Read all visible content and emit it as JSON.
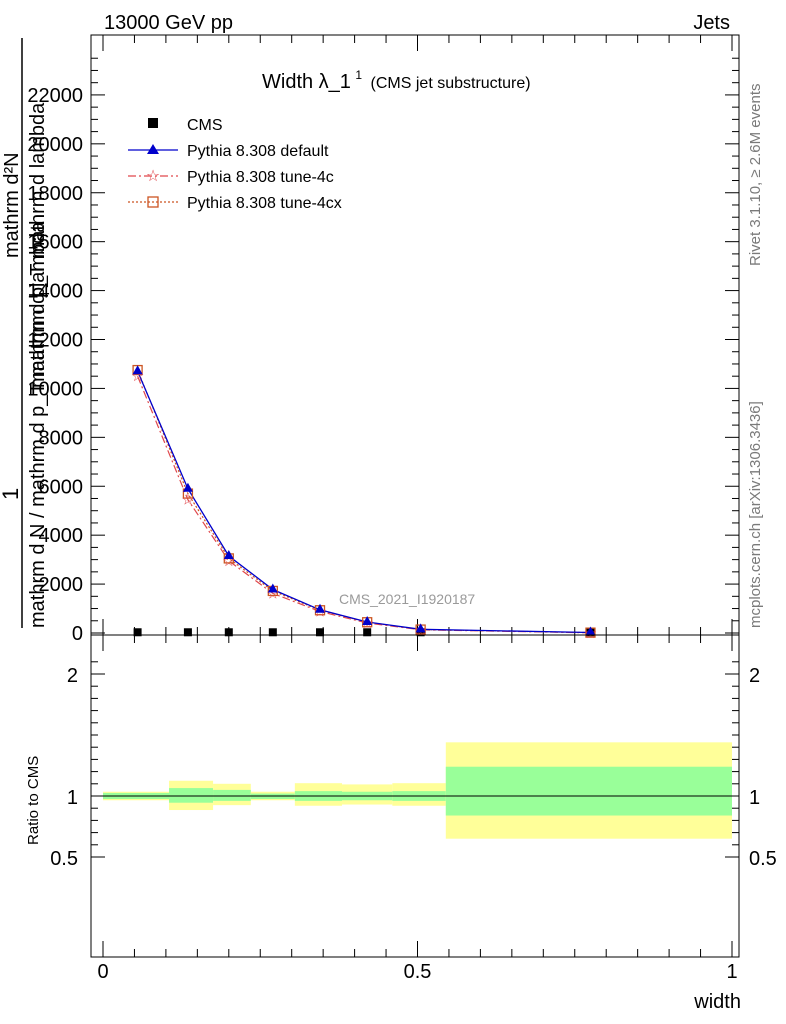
{
  "header": {
    "left": "13000 GeV pp",
    "right": "Jets"
  },
  "side_texts": {
    "rivet": "Rivet 3.1.10, ≥ 2.6M events",
    "mcplots": "mcplots.cern.ch [arXiv:1306.3436]"
  },
  "watermark": "CMS_2021_I1920187",
  "colors": {
    "data": "#000000",
    "default": "#0000cc",
    "tune4c": "#e0474c",
    "tune4cx": "#cc5522",
    "band_inner": "#99ff99",
    "band_outer": "#ffff99"
  },
  "chart_data": [
    {
      "type": "line",
      "title_main": "Width λ_1",
      "title_sup": "1",
      "title_note": "(CMS jet substructure)",
      "ylabel_numerator": "1",
      "ylabel_denominator": "mathrm d N / mathrm d p_T mathrm d lambda",
      "ylabel_top": "mathrm d²N",
      "ylabel_top2": "mathrm d p_T mathrm d lambda",
      "xlim": [
        0,
        1
      ],
      "ylim": [
        0,
        24000
      ],
      "yticks": [
        0,
        2000,
        4000,
        6000,
        8000,
        10000,
        12000,
        14000,
        16000,
        18000,
        20000,
        22000
      ],
      "ytick_labels": [
        "0",
        "2000",
        "4000",
        "6000",
        "8000",
        "10000",
        "12000",
        "14000",
        "16000",
        "18000",
        "20000",
        "22000"
      ],
      "bin_edges": [
        0,
        0.105,
        0.175,
        0.235,
        0.305,
        0.38,
        0.46,
        0.545,
        1.0
      ],
      "series": [
        {
          "name": "CMS",
          "marker": "square",
          "x": [
            0.055,
            0.135,
            0.2,
            0.27,
            0.345,
            0.42,
            0.505,
            0.775
          ],
          "y": [
            30,
            30,
            30,
            30,
            30,
            30,
            30,
            30
          ]
        },
        {
          "name": "Pythia 8.308 default",
          "marker": "triangle",
          "x": [
            0.055,
            0.135,
            0.2,
            0.27,
            0.345,
            0.42,
            0.505,
            0.775
          ],
          "y": [
            10700,
            5900,
            3150,
            1780,
            950,
            450,
            150,
            20
          ]
        },
        {
          "name": "Pythia 8.308 tune-4c",
          "marker": "star",
          "x": [
            0.055,
            0.135,
            0.2,
            0.27,
            0.345,
            0.42,
            0.505,
            0.775
          ],
          "y": [
            10500,
            5450,
            2950,
            1620,
            880,
            410,
            130,
            10
          ]
        },
        {
          "name": "Pythia 8.308 tune-4cx",
          "marker": "open-square",
          "x": [
            0.055,
            0.135,
            0.2,
            0.27,
            0.345,
            0.42,
            0.505,
            0.775
          ],
          "y": [
            10750,
            5700,
            3050,
            1720,
            930,
            440,
            140,
            15
          ]
        }
      ]
    },
    {
      "type": "area",
      "ylabel": "Ratio to CMS",
      "xlabel": "width",
      "xlim": [
        0,
        1
      ],
      "ylim": [
        0.4,
        2.25
      ],
      "yticks": [
        0.5,
        1,
        2
      ],
      "ytick_labels": [
        "0.5",
        "1",
        "2"
      ],
      "xticks": [
        0,
        0.5,
        1
      ],
      "xtick_labels": [
        "0",
        "0.5",
        "1"
      ],
      "bins": [
        {
          "lo": 0.0,
          "hi": 0.105,
          "inner": [
            0.975,
            1.025
          ],
          "outer": [
            0.965,
            1.035
          ]
        },
        {
          "lo": 0.105,
          "hi": 0.175,
          "inner": [
            0.945,
            1.065
          ],
          "outer": [
            0.885,
            1.125
          ]
        },
        {
          "lo": 0.175,
          "hi": 0.235,
          "inner": [
            0.96,
            1.05
          ],
          "outer": [
            0.925,
            1.1
          ]
        },
        {
          "lo": 0.235,
          "hi": 0.305,
          "inner": [
            0.975,
            1.02
          ],
          "outer": [
            0.965,
            1.035
          ]
        },
        {
          "lo": 0.305,
          "hi": 0.38,
          "inner": [
            0.96,
            1.04
          ],
          "outer": [
            0.92,
            1.105
          ]
        },
        {
          "lo": 0.38,
          "hi": 0.46,
          "inner": [
            0.965,
            1.035
          ],
          "outer": [
            0.93,
            1.095
          ]
        },
        {
          "lo": 0.46,
          "hi": 0.545,
          "inner": [
            0.96,
            1.04
          ],
          "outer": [
            0.92,
            1.105
          ]
        },
        {
          "lo": 0.545,
          "hi": 1.0,
          "inner": [
            0.84,
            1.24
          ],
          "outer": [
            0.65,
            1.44
          ]
        }
      ]
    }
  ]
}
